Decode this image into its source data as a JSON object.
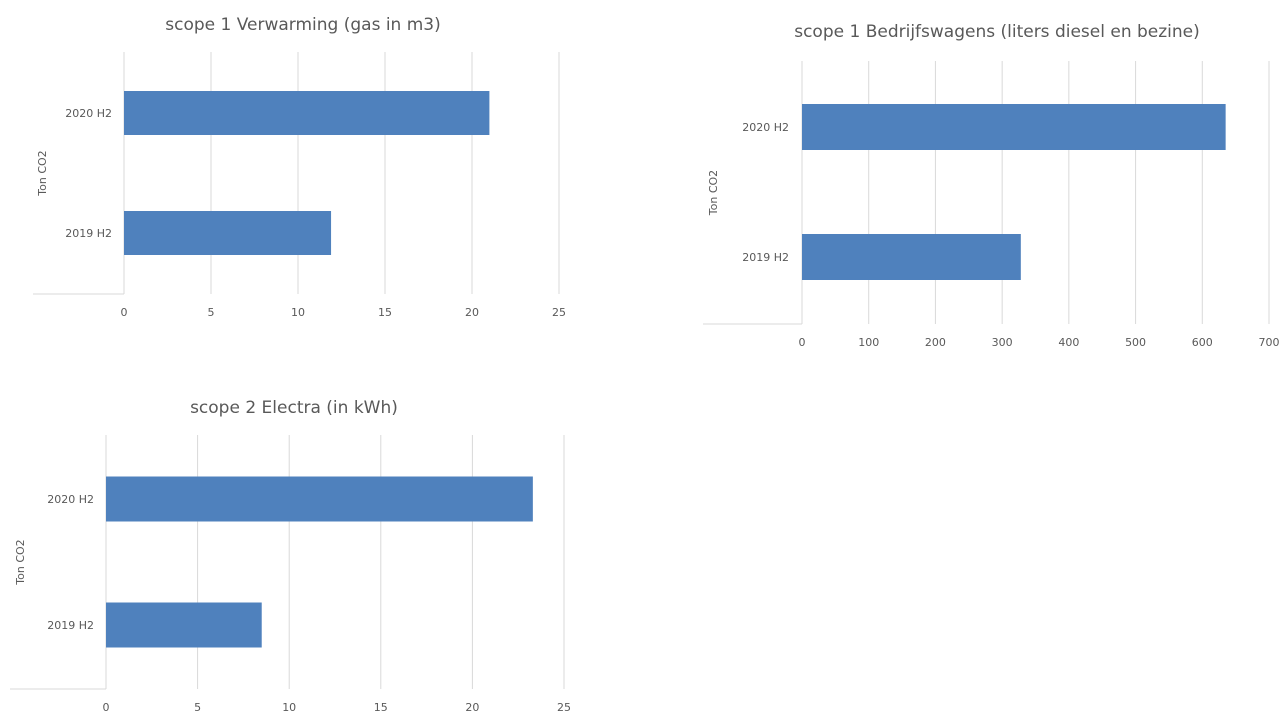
{
  "chart_data": [
    {
      "type": "bar",
      "orientation": "horizontal",
      "title": "scope 1 Verwarming (gas in m3)",
      "ylabel": "Ton CO2",
      "xlabel": "",
      "categories": [
        "2020 H2",
        "2019 H2"
      ],
      "values": [
        21,
        11.9
      ],
      "xlim": [
        0,
        25
      ],
      "xticks": [
        0,
        5,
        10,
        15,
        20,
        25
      ],
      "grid": true,
      "bar_color": "#4f81bd"
    },
    {
      "type": "bar",
      "orientation": "horizontal",
      "title": "scope 1 Bedrijfswagens (liters diesel en bezine)",
      "ylabel": "Ton CO2",
      "xlabel": "",
      "categories": [
        "2020 H2",
        "2019 H2"
      ],
      "values": [
        635,
        328
      ],
      "xlim": [
        0,
        700
      ],
      "xticks": [
        0,
        100,
        200,
        300,
        400,
        500,
        600,
        700
      ],
      "grid": true,
      "bar_color": "#4f81bd"
    },
    {
      "type": "bar",
      "orientation": "horizontal",
      "title": "scope 2 Electra (in kWh)",
      "ylabel": "Ton CO2",
      "xlabel": "",
      "categories": [
        "2020 H2",
        "2019 H2"
      ],
      "values": [
        23.3,
        8.5
      ],
      "xlim": [
        0,
        25
      ],
      "xticks": [
        0,
        5,
        10,
        15,
        20,
        25
      ],
      "grid": true,
      "bar_color": "#4f81bd"
    }
  ]
}
